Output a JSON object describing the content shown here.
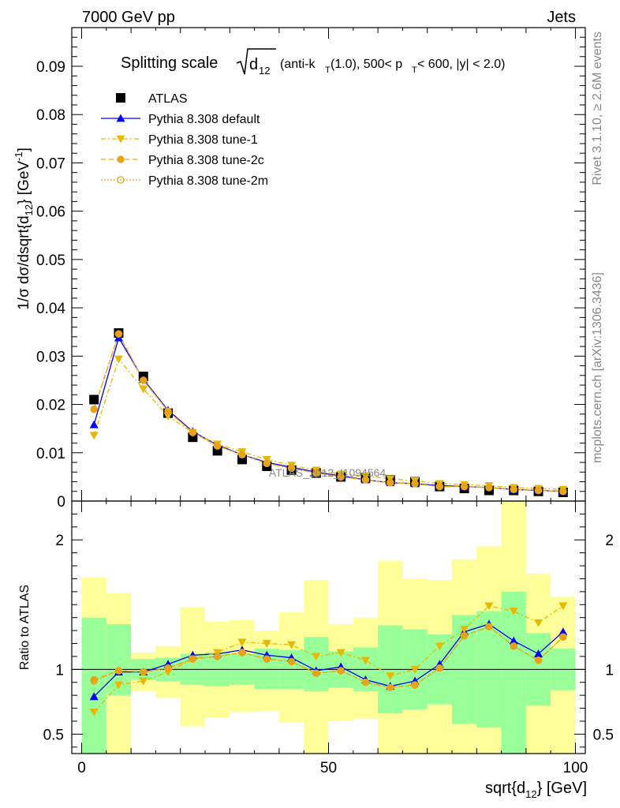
{
  "header": {
    "left": "7000 GeV pp",
    "right": "Jets"
  },
  "side_labels": {
    "rivet": "Rivet 3.1.10, ≥ 2.6M events",
    "mcplots": "mcplots.cern.ch [arXiv:1306.3436]"
  },
  "watermark": "ATLAS_2012_I1094564",
  "title": {
    "main": "Splitting scale",
    "sqrt_sub": "d",
    "sqrt_index": "12",
    "rest": "(anti-k",
    "rest_sub": "T",
    "rest2": "(1.0), 500< p",
    "rest2_sub": "T",
    "rest3": " < 600, |y| < 2.0)"
  },
  "axes": {
    "ylabel_top": "1/σ dσ/dsqrt{d",
    "ylabel_top_sub": "12",
    "ylabel_top_end": "} [GeV",
    "ylabel_top_sup": "-1",
    "ylabel_top_close": "]",
    "ylabel_bottom": "Ratio to ATLAS",
    "xlabel": "sqrt{d",
    "xlabel_sub": "12",
    "xlabel_end": "} [GeV]"
  },
  "colors": {
    "atlas": "#000000",
    "default": "#0000ff",
    "tune": "#e8a317",
    "tune1": "#e6b800",
    "band_yellow": "#ffff99",
    "band_green": "#99ff99"
  },
  "chart_data": {
    "type": "line",
    "x": [
      2.5,
      7.5,
      12.5,
      17.5,
      22.5,
      27.5,
      32.5,
      37.5,
      42.5,
      47.5,
      52.5,
      57.5,
      62.5,
      67.5,
      72.5,
      77.5,
      82.5,
      87.5,
      92.5,
      97.5
    ],
    "xlim": [
      -2,
      102
    ],
    "ylim": [
      0,
      0.098
    ],
    "yticks": [
      0.01,
      0.02,
      0.03,
      0.04,
      0.05,
      0.06,
      0.07,
      0.08,
      0.09
    ],
    "ytick_labels": [
      "0.01",
      "0.02",
      "0.03",
      "0.04",
      "0.05",
      "0.06",
      "0.07",
      "0.08",
      "0.09"
    ],
    "ytick_zero_label": "0",
    "xticks": [
      0,
      50,
      100
    ],
    "xtick_labels": [
      "0",
      "50",
      "100"
    ],
    "ratio_ylim": [
      0.35,
      2.3
    ],
    "ratio_yticks": [
      0.5,
      1,
      2
    ],
    "ratio_ytick_labels": [
      "0.5",
      "1",
      "2"
    ],
    "legend_position": "top-left",
    "series": [
      {
        "name": "ATLAS",
        "marker": "square",
        "values": [
          0.021,
          0.0348,
          0.0258,
          0.0182,
          0.0132,
          0.0104,
          0.0086,
          0.0072,
          0.0064,
          0.0058,
          0.005,
          0.0048,
          0.0044,
          0.004,
          0.003,
          0.0026,
          0.0022,
          0.0022,
          0.002,
          0.0018
        ]
      },
      {
        "name": "Pythia 8.308 default",
        "marker": "triangle-up",
        "values": [
          0.0158,
          0.0338,
          0.0252,
          0.0188,
          0.0144,
          0.0116,
          0.0096,
          0.008,
          0.007,
          0.006,
          0.0052,
          0.0044,
          0.0038,
          0.0036,
          0.0032,
          0.003,
          0.0028,
          0.0024,
          0.0022,
          0.002
        ]
      },
      {
        "name": "Pythia 8.308 tune-1",
        "marker": "triangle-down",
        "values": [
          0.0136,
          0.0294,
          0.0232,
          0.0176,
          0.0142,
          0.0118,
          0.0102,
          0.0086,
          0.0074,
          0.0064,
          0.0056,
          0.0052,
          0.0046,
          0.0042,
          0.0036,
          0.0034,
          0.0032,
          0.0028,
          0.0026,
          0.0024
        ]
      },
      {
        "name": "Pythia 8.308 tune-2c",
        "marker": "circle",
        "values": [
          0.019,
          0.0346,
          0.025,
          0.0186,
          0.0142,
          0.0114,
          0.0096,
          0.0078,
          0.0068,
          0.0058,
          0.005,
          0.0044,
          0.0038,
          0.0036,
          0.003,
          0.003,
          0.0028,
          0.0024,
          0.0022,
          0.002
        ]
      },
      {
        "name": "Pythia 8.308 tune-2m",
        "marker": "circle-open",
        "values": [
          0.019,
          0.0346,
          0.025,
          0.0186,
          0.0142,
          0.0114,
          0.0096,
          0.0078,
          0.0068,
          0.0058,
          0.005,
          0.0044,
          0.0038,
          0.0036,
          0.003,
          0.003,
          0.0028,
          0.0024,
          0.0022,
          0.002
        ]
      }
    ],
    "ratio_series": [
      {
        "name": "Pythia 8.308 default",
        "values": [
          0.79,
          0.98,
          0.98,
          1.04,
          1.11,
          1.12,
          1.15,
          1.11,
          1.09,
          0.99,
          1.02,
          0.92,
          0.87,
          0.91,
          1.04,
          1.29,
          1.35,
          1.22,
          1.12,
          1.29
        ]
      },
      {
        "name": "Pythia 8.308 tune-1",
        "values": [
          0.67,
          0.88,
          0.91,
          0.98,
          1.08,
          1.13,
          1.21,
          1.2,
          1.19,
          1.1,
          1.13,
          1.07,
          0.95,
          1.0,
          1.18,
          1.31,
          1.49,
          1.45,
          1.36,
          1.49
        ]
      },
      {
        "name": "Pythia 8.308 tune-2c",
        "values": [
          0.92,
          0.99,
          0.98,
          1.01,
          1.08,
          1.1,
          1.13,
          1.08,
          1.06,
          0.97,
          0.99,
          0.9,
          0.86,
          0.88,
          1.01,
          1.26,
          1.33,
          1.18,
          1.07,
          1.25
        ]
      },
      {
        "name": "Pythia 8.308 tune-2m",
        "values": [
          0.91,
          0.99,
          0.98,
          1.01,
          1.08,
          1.1,
          1.13,
          1.08,
          1.06,
          0.97,
          0.99,
          0.9,
          0.86,
          0.88,
          1.01,
          1.26,
          1.33,
          1.18,
          1.07,
          1.25
        ]
      }
    ],
    "uncertainty_bands": {
      "green": {
        "low": [
          0.35,
          0.8,
          0.92,
          0.91,
          0.88,
          0.87,
          0.88,
          0.85,
          0.85,
          0.83,
          0.86,
          0.83,
          0.66,
          0.69,
          0.73,
          0.58,
          0.55,
          0.35,
          0.72,
          0.84
        ],
        "high": [
          1.4,
          1.35,
          1.08,
          1.09,
          1.12,
          1.13,
          1.12,
          1.16,
          1.15,
          1.25,
          1.14,
          1.17,
          1.34,
          1.31,
          1.27,
          1.42,
          1.45,
          1.6,
          1.28,
          1.16
        ]
      },
      "yellow": {
        "low": [
          0.35,
          0.35,
          0.83,
          0.78,
          0.56,
          0.63,
          0.67,
          0.68,
          0.59,
          0.35,
          0.6,
          0.62,
          0.35,
          0.35,
          0.35,
          0.35,
          0.35,
          0.35,
          0.35,
          0.35
        ],
        "high": [
          1.71,
          1.59,
          1.13,
          1.18,
          1.48,
          1.37,
          1.38,
          1.3,
          1.44,
          1.69,
          1.35,
          1.4,
          1.84,
          1.7,
          1.69,
          1.85,
          1.95,
          2.3,
          1.74,
          1.56
        ]
      }
    }
  }
}
